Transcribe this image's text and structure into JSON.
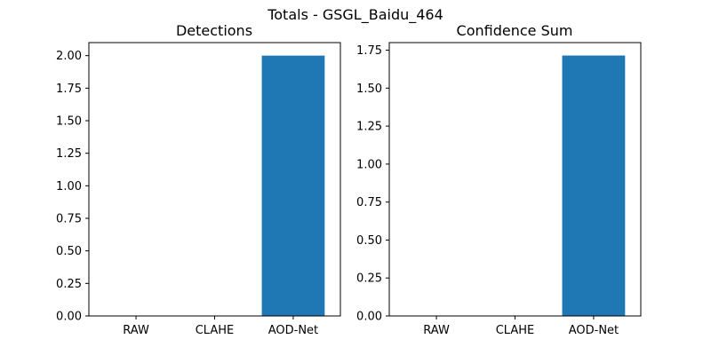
{
  "figure": {
    "suptitle": "Totals - GSGL_Baidu_464"
  },
  "chart_data": [
    {
      "type": "bar",
      "title": "Detections",
      "xlabel": "",
      "ylabel": "",
      "categories": [
        "RAW",
        "CLAHE",
        "AOD-Net"
      ],
      "values": [
        0,
        0,
        2
      ],
      "ylim": [
        0,
        2.1
      ],
      "yticks": [
        0.0,
        0.25,
        0.5,
        0.75,
        1.0,
        1.25,
        1.5,
        1.75,
        2.0
      ],
      "ytick_labels": [
        "0.00",
        "0.25",
        "0.50",
        "0.75",
        "1.00",
        "1.25",
        "1.50",
        "1.75",
        "2.00"
      ],
      "bar_color": "#1f77b4",
      "grid": false,
      "legend": "none"
    },
    {
      "type": "bar",
      "title": "Confidence Sum",
      "xlabel": "",
      "ylabel": "",
      "categories": [
        "RAW",
        "CLAHE",
        "AOD-Net"
      ],
      "values": [
        0,
        0,
        1.715
      ],
      "ylim": [
        0,
        1.8
      ],
      "yticks": [
        0.0,
        0.25,
        0.5,
        0.75,
        1.0,
        1.25,
        1.5,
        1.75
      ],
      "ytick_labels": [
        "0.00",
        "0.25",
        "0.50",
        "0.75",
        "1.00",
        "1.25",
        "1.50",
        "1.75"
      ],
      "bar_color": "#1f77b4",
      "grid": false,
      "legend": "none"
    }
  ]
}
